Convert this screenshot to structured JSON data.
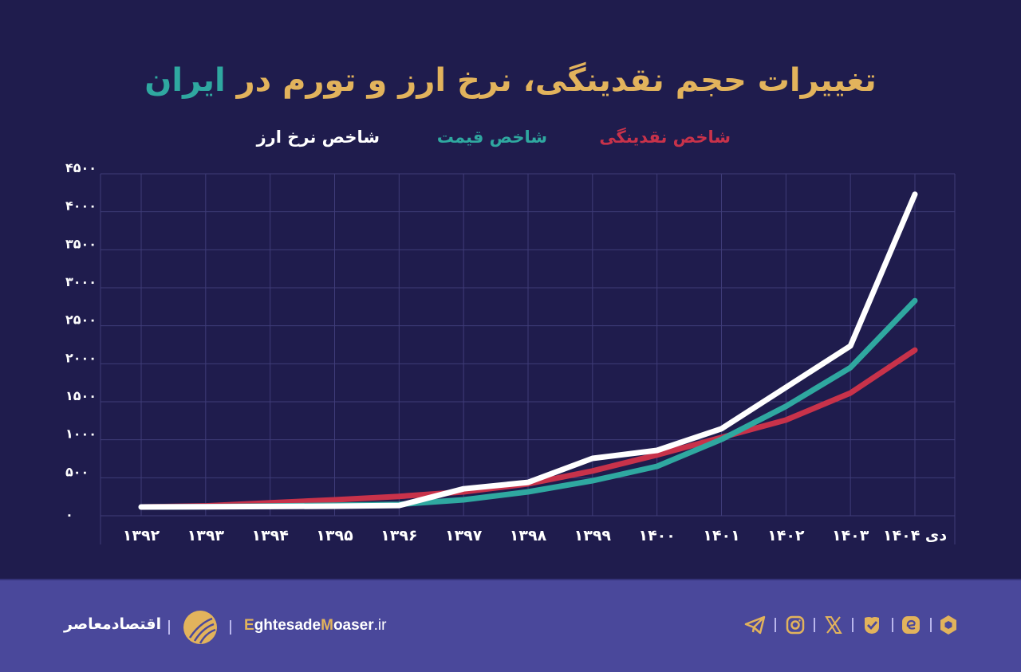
{
  "title": {
    "main": "تغییرات حجم نقدینگی، نرخ ارز و تورم در",
    "accent": "ایران"
  },
  "legend": [
    {
      "label": "شاخص نقدینگی",
      "color": "#c8324a"
    },
    {
      "label": "شاخص قیمت",
      "color": "#2fa8a0"
    },
    {
      "label": "شاخص نرخ ارز",
      "color": "#ffffff"
    }
  ],
  "colors": {
    "background": "#1f1c4d",
    "footer": "#4a489b",
    "gold": "#e2b35c",
    "grid": "#3f3c78"
  },
  "chart_data": {
    "type": "line",
    "title": "تغییرات حجم نقدینگی، نرخ ارز و تورم در ایران",
    "xlabel": "",
    "ylabel": "",
    "categories": [
      "۱۳۹۲",
      "۱۳۹۳",
      "۱۳۹۴",
      "۱۳۹۵",
      "۱۳۹۶",
      "۱۳۹۷",
      "۱۳۹۸",
      "۱۳۹۹",
      "۱۴۰۰",
      "۱۴۰۱",
      "۱۴۰۲",
      "۱۴۰۳",
      "دی ۱۴۰۴"
    ],
    "x": [
      1392,
      1393,
      1394,
      1395,
      1396,
      1397,
      1398,
      1399,
      1400,
      1401,
      1402,
      1403,
      1404
    ],
    "yticks": [
      "۰",
      "۵۰۰",
      "۱۰۰۰",
      "۱۵۰۰",
      "۲۰۰۰",
      "۲۵۰۰",
      "۳۰۰۰",
      "۳۵۰۰",
      "۴۰۰۰",
      "۴۵۰۰"
    ],
    "ylim": [
      0,
      4500
    ],
    "grid": true,
    "legend_position": "top",
    "series": [
      {
        "name": "شاخص نقدینگی",
        "color": "#c8324a",
        "values": [
          115,
          130,
          170,
          210,
          255,
          315,
          420,
          590,
          800,
          1030,
          1260,
          1615,
          2180
        ]
      },
      {
        "name": "شاخص قیمت",
        "color": "#2fa8a0",
        "values": [
          115,
          120,
          128,
          138,
          150,
          210,
          315,
          460,
          650,
          1005,
          1440,
          1950,
          2830
        ]
      },
      {
        "name": "شاخص نرخ ارز",
        "color": "#ffffff",
        "values": [
          115,
          118,
          122,
          126,
          135,
          355,
          440,
          755,
          860,
          1145,
          1690,
          2235,
          4230
        ]
      }
    ]
  },
  "footer": {
    "brand_fa": "اقتصادمعاصر",
    "site_e": "E",
    "site_part1": "ghtesade",
    "site_m": "M",
    "site_part2": "oaser",
    "site_domain": ".ir",
    "social_icons": [
      "telegram-icon",
      "instagram-icon",
      "x-icon",
      "check-badge-icon",
      "eitaa-icon",
      "rubika-icon"
    ]
  }
}
